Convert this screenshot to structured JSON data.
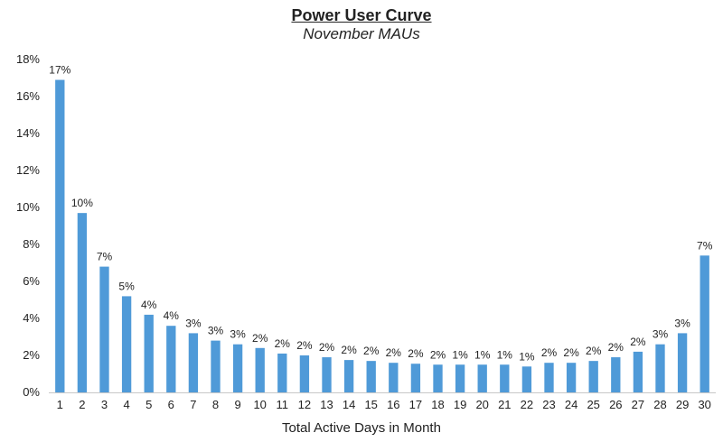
{
  "chart_data": {
    "type": "bar",
    "title": "Power User Curve",
    "subtitle": "November MAUs",
    "xlabel": "Total Active Days in Month",
    "ylabel": "",
    "ylim": [
      0,
      18
    ],
    "yticks": [
      "0%",
      "2%",
      "4%",
      "6%",
      "8%",
      "10%",
      "12%",
      "14%",
      "16%",
      "18%"
    ],
    "grid": false,
    "bar_color": "#4f9ad8",
    "categories": [
      "1",
      "2",
      "3",
      "4",
      "5",
      "6",
      "7",
      "8",
      "9",
      "10",
      "11",
      "12",
      "13",
      "14",
      "15",
      "16",
      "17",
      "18",
      "19",
      "20",
      "21",
      "22",
      "23",
      "24",
      "25",
      "26",
      "27",
      "28",
      "29",
      "30"
    ],
    "values": [
      16.9,
      9.7,
      6.8,
      5.2,
      4.2,
      3.6,
      3.2,
      2.8,
      2.6,
      2.4,
      2.1,
      2.0,
      1.9,
      1.75,
      1.7,
      1.6,
      1.55,
      1.5,
      1.5,
      1.5,
      1.5,
      1.4,
      1.6,
      1.6,
      1.7,
      1.9,
      2.2,
      2.6,
      3.2,
      7.4
    ],
    "data_labels": [
      "17%",
      "10%",
      "7%",
      "5%",
      "4%",
      "4%",
      "3%",
      "3%",
      "3%",
      "2%",
      "2%",
      "2%",
      "2%",
      "2%",
      "2%",
      "2%",
      "2%",
      "2%",
      "1%",
      "1%",
      "1%",
      "1%",
      "2%",
      "2%",
      "2%",
      "2%",
      "2%",
      "3%",
      "3%",
      "7%"
    ]
  }
}
